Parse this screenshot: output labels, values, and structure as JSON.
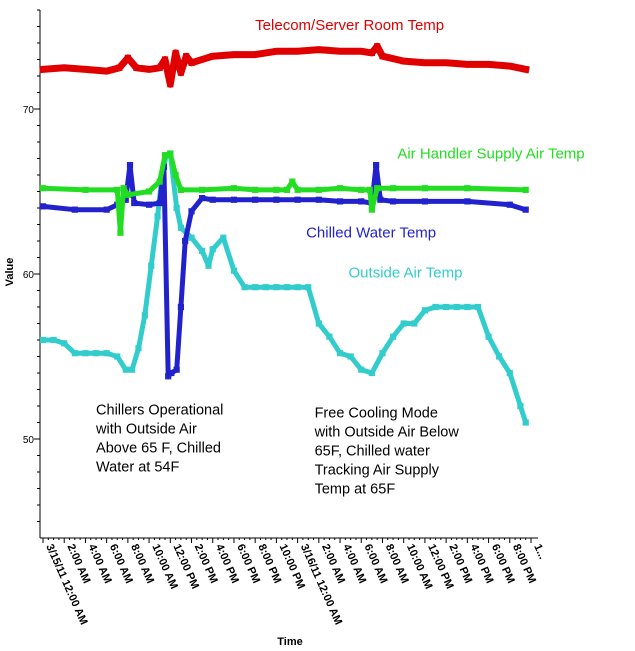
{
  "chart_data": {
    "type": "line",
    "xlabel": "Time",
    "ylabel": "Value",
    "ylim": [
      44,
      76
    ],
    "xlim": [
      0,
      46
    ],
    "yticks": [
      50,
      60,
      70
    ],
    "grid": false,
    "x_tick_labels": [
      "3/15/11 12:00 AM",
      "2:00 AM",
      "4:00 AM",
      "6:00 AM",
      "8:00 AM",
      "10:00 AM",
      "12:00 PM",
      "2:00 PM",
      "4:00 PM",
      "6:00 PM",
      "8:00 PM",
      "10:00 PM",
      "3/16/11 12:00 AM",
      "2:00 AM",
      "4:00 AM",
      "6:00 AM",
      "8:00 AM",
      "10:00 AM",
      "12:00 PM",
      "2:00 PM",
      "4:00 PM",
      "6:00 PM",
      "8:00 PM",
      "1..."
    ],
    "series": [
      {
        "name": "Telecom/Server Room Temp",
        "color": "#e00000",
        "x": [
          0,
          2,
          4,
          6,
          7.2,
          8,
          8.8,
          10,
          11,
          11.5,
          12,
          12.5,
          13,
          13.5,
          14,
          16,
          18,
          20,
          22,
          24,
          26,
          28,
          30,
          31,
          31.5,
          32,
          34,
          36,
          38,
          40,
          42,
          44,
          45.5
        ],
        "y": [
          72.4,
          72.5,
          72.4,
          72.3,
          72.5,
          73.1,
          72.5,
          72.4,
          72.5,
          73.0,
          71.5,
          73.4,
          72.2,
          73.2,
          72.8,
          73.2,
          73.3,
          73.3,
          73.5,
          73.5,
          73.6,
          73.5,
          73.5,
          73.4,
          73.8,
          73.2,
          72.9,
          72.8,
          72.8,
          72.7,
          72.7,
          72.6,
          72.4
        ]
      },
      {
        "name": "Air Handler Supply Air Temp",
        "color": "#22dd22",
        "x": [
          0,
          4,
          7,
          7.3,
          7.6,
          8,
          10,
          11,
          11.5,
          12,
          12.5,
          13,
          15,
          18,
          20,
          22,
          23,
          23.5,
          24,
          26,
          28,
          30,
          30.8,
          31,
          31.5,
          33,
          36,
          40,
          45.5
        ],
        "y": [
          65.2,
          65.1,
          65.1,
          62.5,
          65.2,
          64.8,
          65.0,
          65.6,
          67.2,
          67.3,
          66.0,
          65.1,
          65.1,
          65.2,
          65.1,
          65.1,
          65.1,
          65.6,
          65.1,
          65.1,
          65.2,
          65.1,
          65.1,
          63.9,
          65.2,
          65.2,
          65.2,
          65.2,
          65.1
        ]
      },
      {
        "name": "Chilled Water Temp",
        "color": "#2222cc",
        "x": [
          0,
          3,
          6,
          7,
          7.8,
          8.2,
          8.6,
          10,
          11,
          11.4,
          11.8,
          12.1,
          12.6,
          13,
          13.4,
          14,
          15,
          16,
          18,
          20,
          22,
          24,
          26,
          28,
          30,
          31,
          31.4,
          31.8,
          33,
          36,
          40,
          44,
          45.5
        ],
        "y": [
          64.1,
          63.9,
          63.9,
          64.2,
          64.5,
          66.6,
          64.3,
          64.2,
          64.3,
          66.5,
          53.8,
          54.0,
          54.2,
          58.0,
          62.0,
          63.8,
          64.6,
          64.5,
          64.5,
          64.5,
          64.5,
          64.5,
          64.5,
          64.4,
          64.4,
          64.3,
          66.6,
          64.5,
          64.4,
          64.4,
          64.4,
          64.2,
          63.9
        ]
      },
      {
        "name": "Outside Air Temp",
        "color": "#33cccc",
        "x": [
          0,
          1,
          2,
          3,
          4,
          5,
          6,
          7,
          7.8,
          8.4,
          9,
          9.6,
          10.2,
          10.8,
          11.2,
          11.6,
          12,
          12.6,
          13,
          14,
          15,
          15.6,
          16,
          17,
          18,
          19,
          20,
          21,
          22,
          23,
          24,
          25,
          26,
          27,
          28,
          29,
          30,
          31,
          32,
          33,
          34,
          35,
          36,
          37,
          38,
          39,
          40,
          41,
          42,
          43,
          44,
          45,
          45.5
        ],
        "y": [
          56.0,
          56.0,
          55.8,
          55.2,
          55.2,
          55.2,
          55.2,
          55.0,
          54.2,
          54.2,
          55.5,
          57.5,
          60.5,
          63.5,
          65.8,
          67.2,
          67.3,
          64.0,
          62.8,
          62.2,
          61.4,
          60.5,
          61.5,
          62.2,
          60.2,
          59.2,
          59.2,
          59.2,
          59.2,
          59.2,
          59.2,
          59.2,
          57.0,
          56.2,
          55.2,
          55.0,
          54.2,
          54.0,
          55.2,
          56.2,
          57.0,
          57.0,
          57.8,
          58.0,
          58.0,
          58.0,
          58.0,
          58.0,
          56.2,
          55.0,
          54.0,
          52.0,
          51.0
        ]
      }
    ],
    "series_labels": [
      {
        "text": "Telecom/Server Room Temp",
        "color": "#e00000",
        "x": 20,
        "y": 74.8
      },
      {
        "text": "Air Handler Supply Air Temp",
        "color": "#22dd22",
        "x": 33.4,
        "y": 67.0
      },
      {
        "text": "Chilled Water Temp",
        "color": "#2222cc",
        "x": 24.8,
        "y": 62.2
      },
      {
        "text": "Outside Air Temp",
        "color": "#33cccc",
        "x": 28.8,
        "y": 59.8
      }
    ],
    "annotations": [
      {
        "lines": [
          "Chillers Operational",
          "with Outside Air",
          "Above 65 F, Chilled",
          "Water at 54F"
        ],
        "x": 5.0,
        "y": 51.5
      },
      {
        "lines": [
          "Free Cooling Mode",
          "with Outside Air Below",
          "65F, Chilled water",
          "Tracking Air Supply",
          "Temp at 65F"
        ],
        "x": 25.6,
        "y": 51.3
      }
    ]
  }
}
